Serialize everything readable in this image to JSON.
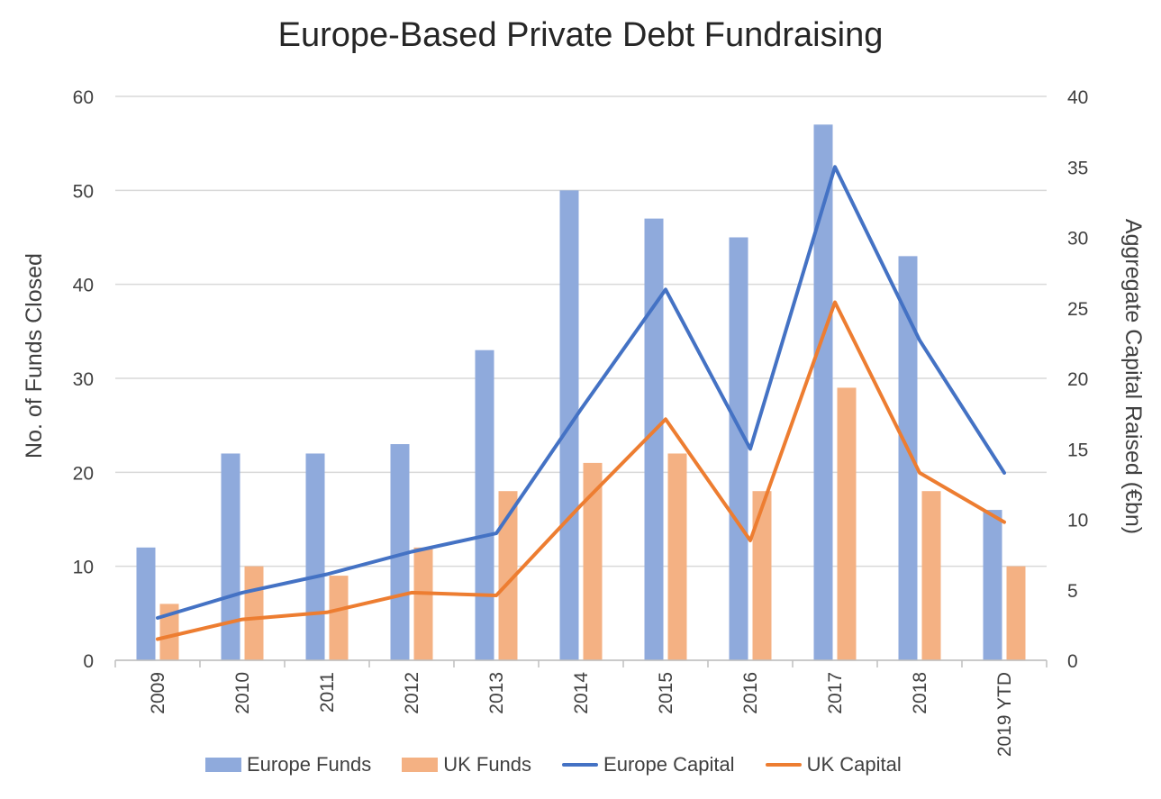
{
  "chart_data": {
    "type": "bar",
    "title": "Europe-Based Private Debt Fundraising",
    "categories": [
      "2009",
      "2010",
      "2011",
      "2012",
      "2013",
      "2014",
      "2015",
      "2016",
      "2017",
      "2018",
      "2019 YTD"
    ],
    "ylabel": "No. of Funds Closed",
    "ylabel_right": "Aggregate Capital Raised (€bn)",
    "ylim": [
      0,
      60
    ],
    "ylim_right": [
      0,
      40
    ],
    "yticks": [
      "0",
      "10",
      "20",
      "30",
      "40",
      "50",
      "60"
    ],
    "yticks_right": [
      "0",
      "5",
      "10",
      "15",
      "20",
      "25",
      "30",
      "35",
      "40"
    ],
    "grid": true,
    "legend_position": "bottom",
    "series": [
      {
        "name": "Europe Funds",
        "type": "bar",
        "axis": "left",
        "color": "#8faadc",
        "values": [
          12,
          22,
          22,
          23,
          33,
          50,
          47,
          45,
          57,
          43,
          16
        ]
      },
      {
        "name": "UK Funds",
        "type": "bar",
        "axis": "left",
        "color": "#f4b183",
        "values": [
          6,
          10,
          9,
          12,
          18,
          21,
          22,
          18,
          29,
          18,
          10
        ]
      },
      {
        "name": "Europe Capital",
        "type": "line",
        "axis": "right",
        "color": "#4472c4",
        "values": [
          3,
          4.8,
          6.1,
          7.7,
          9,
          17.8,
          26.3,
          15,
          35,
          22.7,
          13.3
        ]
      },
      {
        "name": "UK Capital",
        "type": "line",
        "axis": "right",
        "color": "#ed7d31",
        "values": [
          1.5,
          2.9,
          3.4,
          4.8,
          4.6,
          11,
          17.1,
          8.5,
          25.4,
          13.3,
          9.8
        ]
      }
    ]
  }
}
